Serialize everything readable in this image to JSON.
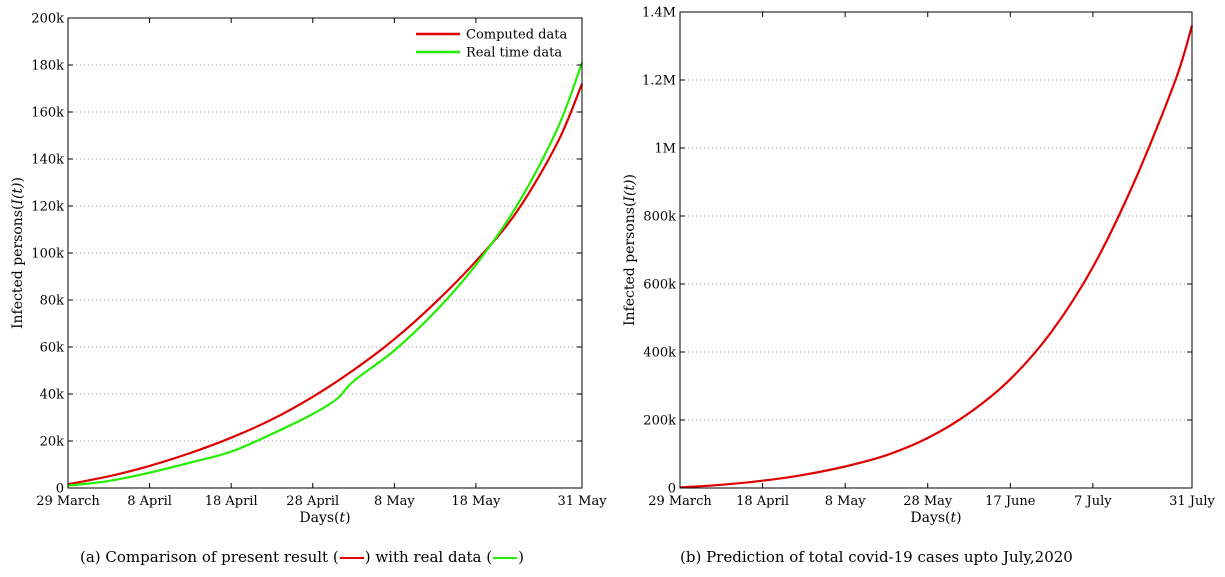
{
  "chart_data": [
    {
      "type": "line",
      "title": "",
      "xlabel": "Days(t)",
      "ylabel": "Infected persons(I(t))",
      "x_tick_labels": [
        "29 March",
        "8 April",
        "18 April",
        "28 April",
        "8 May",
        "18 May",
        "31 May"
      ],
      "x_tick_days": [
        0,
        10,
        20,
        30,
        40,
        50,
        63
      ],
      "x_range_days": [
        0,
        63
      ],
      "ylim": [
        0,
        200000
      ],
      "y_tick_labels": [
        "0",
        "20k",
        "40k",
        "60k",
        "80k",
        "100k",
        "120k",
        "140k",
        "160k",
        "180k",
        "200k"
      ],
      "y_tick_values": [
        0,
        20000,
        40000,
        60000,
        80000,
        100000,
        120000,
        140000,
        160000,
        180000,
        200000
      ],
      "grid": "horizontal dotted",
      "legend": "top-right",
      "series": [
        {
          "name": "Computed data",
          "color": "#e00000",
          "x_days": [
            0,
            5,
            10,
            15,
            20,
            25,
            30,
            35,
            40,
            45,
            50,
            55,
            60,
            63
          ],
          "values": [
            1600,
            5000,
            9400,
            14900,
            21400,
            29200,
            38800,
            50200,
            63300,
            78800,
            96500,
            117500,
            147000,
            172000
          ]
        },
        {
          "name": "Real time data",
          "color": "#22ee00",
          "x_days": [
            0,
            5,
            10,
            15,
            20,
            25,
            30,
            33,
            35,
            40,
            45,
            50,
            55,
            60,
            63
          ],
          "values": [
            1000,
            3000,
            6500,
            10800,
            15500,
            23000,
            31500,
            38000,
            45500,
            58500,
            75000,
            95000,
            120000,
            153000,
            181000
          ]
        }
      ],
      "caption": {
        "prefix": "(a) Comparison of present result (",
        "middle": ") with real data (",
        "suffix": ")",
        "swatch1_color": "#e00000",
        "swatch2_color": "#22ee00"
      }
    },
    {
      "type": "line",
      "title": "",
      "xlabel": "Days(t)",
      "ylabel": "Infected persons(I(t))",
      "x_tick_labels": [
        "29 March",
        "18 April",
        "8 May",
        "28 May",
        "17 June",
        "7 July",
        "31 July"
      ],
      "x_tick_days": [
        0,
        20,
        40,
        60,
        80,
        100,
        124
      ],
      "x_range_days": [
        0,
        124
      ],
      "ylim": [
        0,
        1400000
      ],
      "y_tick_labels": [
        "0",
        "200k",
        "400k",
        "600k",
        "800k",
        "1M",
        "1.2M",
        "1.4M"
      ],
      "y_tick_values": [
        0,
        200000,
        400000,
        600000,
        800000,
        1000000,
        1200000,
        1400000
      ],
      "grid": "horizontal dotted",
      "series": [
        {
          "color": "#e00000",
          "x_days": [
            0,
            10,
            20,
            30,
            40,
            50,
            60,
            70,
            80,
            90,
            100,
            110,
            120,
            124
          ],
          "values": [
            1600,
            9400,
            21400,
            38800,
            63300,
            96500,
            147000,
            220000,
            320000,
            460000,
            650000,
            900000,
            1200000,
            1360000
          ]
        }
      ],
      "caption": {
        "text": "(b) Prediction of total covid-19 cases upto July,2020"
      }
    }
  ]
}
